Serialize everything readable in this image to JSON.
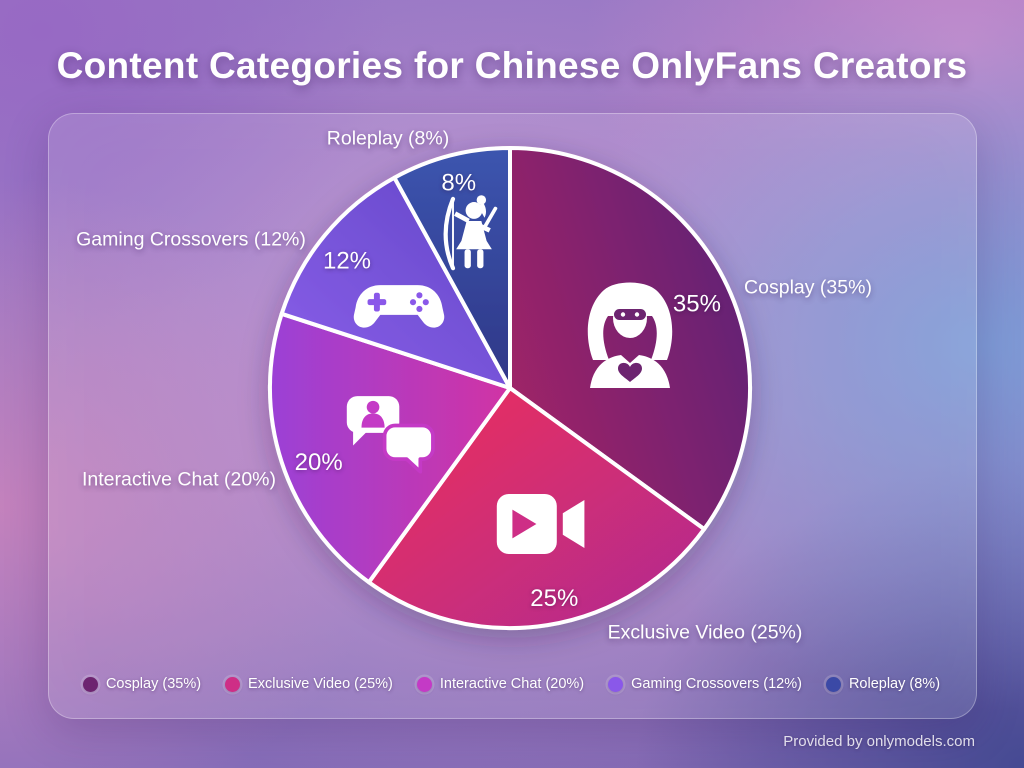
{
  "title": "Content Categories for Chinese OnlyFans Creators",
  "footer": "Provided by onlymodels.com",
  "chart_data": {
    "type": "pie",
    "title": "Content Categories for Chinese OnlyFans Creators",
    "categories": [
      "Cosplay",
      "Exclusive Video",
      "Interactive Chat",
      "Gaming Crossovers",
      "Roleplay"
    ],
    "values": [
      35,
      25,
      20,
      12,
      8
    ],
    "unit": "percent",
    "start_angle_deg": 0,
    "direction": "clockwise",
    "slice_labels": [
      "35%",
      "25%",
      "20%",
      "12%",
      "8%"
    ],
    "outer_labels": [
      "Cosplay (35%)",
      "Exclusive Video (25%)",
      "Interactive Chat (20%)",
      "Gaming Crossovers (12%)",
      "Roleplay (8%)"
    ],
    "colors": [
      {
        "from": "#a02567",
        "to": "#5e2076"
      },
      {
        "from": "#ef3059",
        "to": "#b02b92"
      },
      {
        "from": "#d133a4",
        "to": "#9b41d6"
      },
      {
        "from": "#8a5fe9",
        "to": "#6347c8"
      },
      {
        "from": "#3c55af",
        "to": "#2f3787"
      }
    ],
    "legend": [
      {
        "label": "Cosplay (35%)",
        "color": "#6d2470"
      },
      {
        "label": "Exclusive Video (25%)",
        "color": "#ce2e86"
      },
      {
        "label": "Interactive Chat (20%)",
        "color": "#c43ac6"
      },
      {
        "label": "Gaming Crossovers (12%)",
        "color": "#8a58e9"
      },
      {
        "label": "Roleplay (8%)",
        "color": "#3b49a6"
      }
    ],
    "icons": [
      "cosplay-masked-woman",
      "video-camera",
      "chat-bubbles",
      "gamepad",
      "roleplay-archer"
    ],
    "legend_position": "bottom",
    "grid": false
  }
}
